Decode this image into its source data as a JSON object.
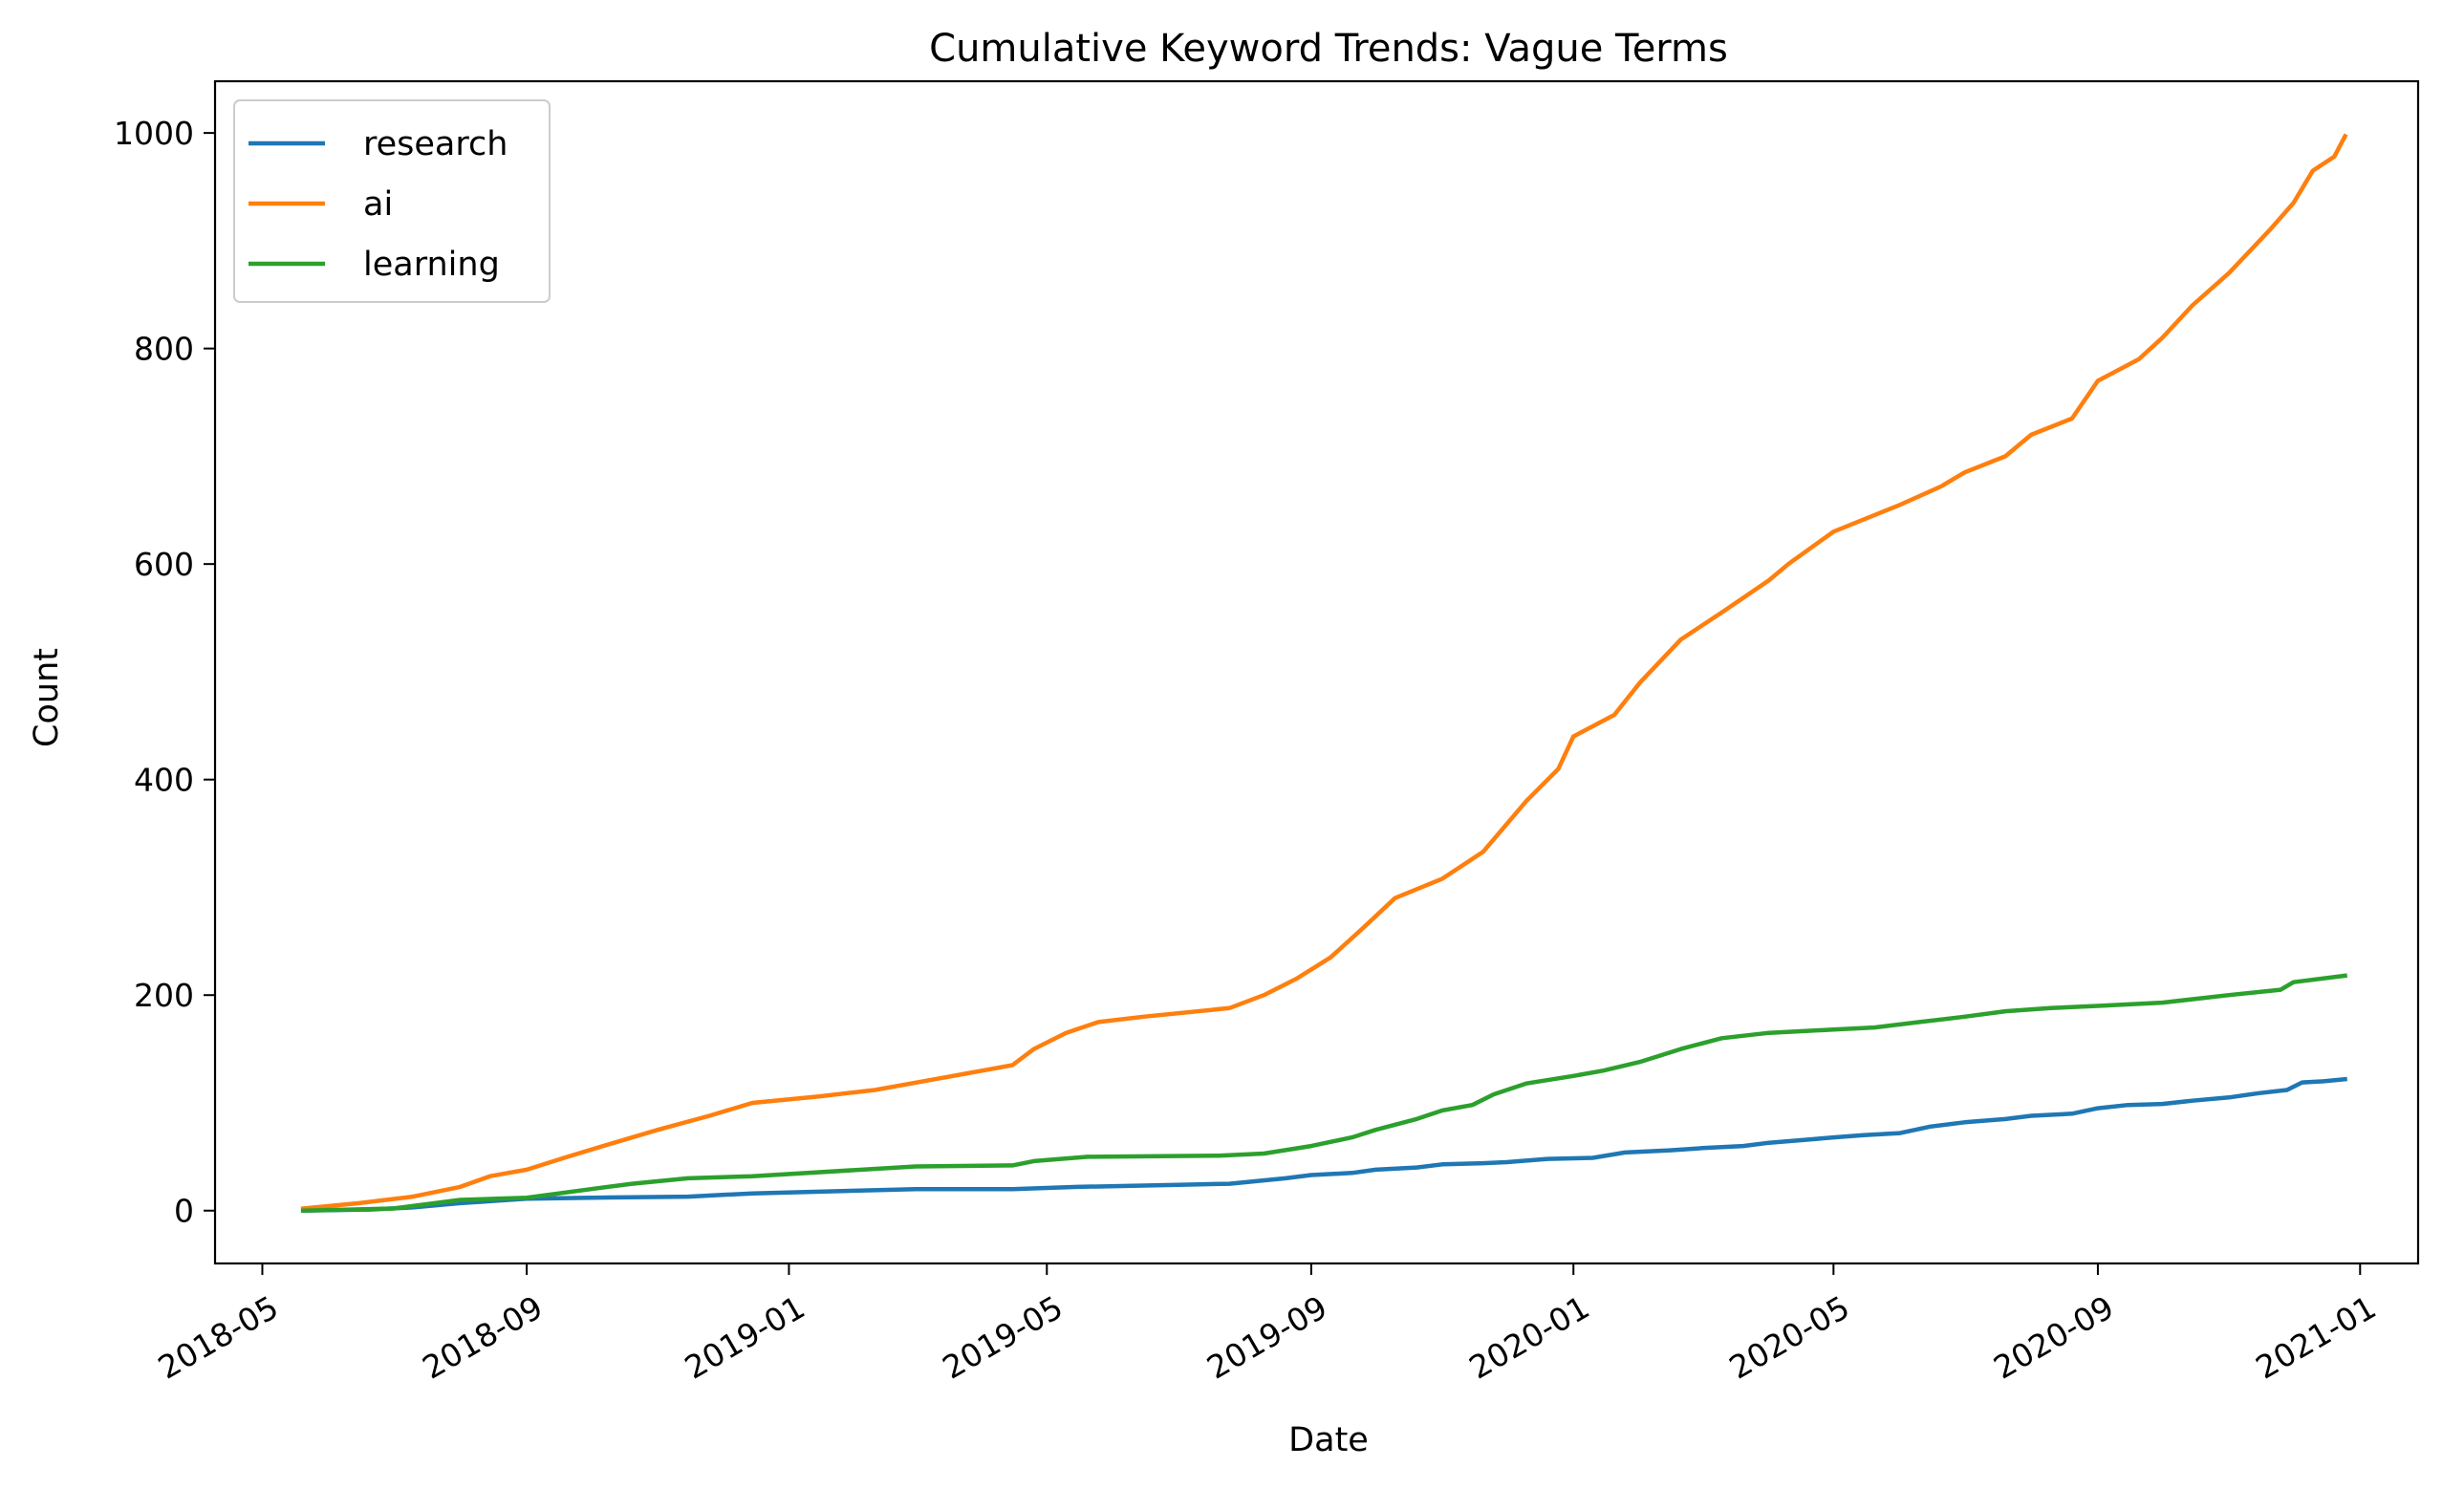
{
  "chart_data": {
    "type": "line",
    "title": "Cumulative Keyword Trends: Vague Terms",
    "xlabel": "Date",
    "ylabel": "Count",
    "x_tick_labels": [
      "2018-05",
      "2018-09",
      "2019-01",
      "2019-05",
      "2019-09",
      "2020-01",
      "2020-05",
      "2020-09",
      "2021-01"
    ],
    "y_ticks": [
      0,
      200,
      400,
      600,
      800,
      1000
    ],
    "xlim": [
      "2018-04-09",
      "2021-01-28"
    ],
    "ylim": [
      -49,
      1048
    ],
    "grid": false,
    "legend_position": "top-left",
    "series": [
      {
        "name": "research",
        "color": "#1f77b4",
        "points": [
          [
            "2018-05-20",
            0
          ],
          [
            "2018-06-20",
            1
          ],
          [
            "2018-07-10",
            3
          ],
          [
            "2018-08-01",
            7
          ],
          [
            "2018-09-01",
            11
          ],
          [
            "2018-10-01",
            12
          ],
          [
            "2018-11-15",
            13
          ],
          [
            "2018-12-15",
            16
          ],
          [
            "2019-03-01",
            20
          ],
          [
            "2019-04-15",
            20
          ],
          [
            "2019-05-15",
            22
          ],
          [
            "2019-07-01",
            24
          ],
          [
            "2019-07-25",
            25
          ],
          [
            "2019-08-20",
            30
          ],
          [
            "2019-09-01",
            33
          ],
          [
            "2019-09-20",
            35
          ],
          [
            "2019-10-01",
            38
          ],
          [
            "2019-10-20",
            40
          ],
          [
            "2019-11-01",
            43
          ],
          [
            "2019-11-20",
            44
          ],
          [
            "2019-12-01",
            45
          ],
          [
            "2019-12-20",
            48
          ],
          [
            "2020-01-10",
            49
          ],
          [
            "2020-01-25",
            54
          ],
          [
            "2020-02-15",
            56
          ],
          [
            "2020-03-01",
            58
          ],
          [
            "2020-03-20",
            60
          ],
          [
            "2020-04-01",
            63
          ],
          [
            "2020-04-20",
            66
          ],
          [
            "2020-05-01",
            68
          ],
          [
            "2020-05-15",
            70
          ],
          [
            "2020-06-01",
            72
          ],
          [
            "2020-06-15",
            78
          ],
          [
            "2020-07-01",
            82
          ],
          [
            "2020-07-20",
            85
          ],
          [
            "2020-08-01",
            88
          ],
          [
            "2020-08-20",
            90
          ],
          [
            "2020-09-01",
            95
          ],
          [
            "2020-09-15",
            98
          ],
          [
            "2020-10-01",
            99
          ],
          [
            "2020-10-15",
            102
          ],
          [
            "2020-11-01",
            105
          ],
          [
            "2020-11-15",
            109
          ],
          [
            "2020-11-28",
            112
          ],
          [
            "2020-12-05",
            119
          ],
          [
            "2020-12-15",
            120
          ],
          [
            "2020-12-25",
            122
          ]
        ]
      },
      {
        "name": "ai",
        "color": "#ff7f0e",
        "points": [
          [
            "2018-05-20",
            2
          ],
          [
            "2018-06-15",
            7
          ],
          [
            "2018-07-10",
            13
          ],
          [
            "2018-08-01",
            22
          ],
          [
            "2018-08-15",
            32
          ],
          [
            "2018-09-01",
            38
          ],
          [
            "2018-09-20",
            50
          ],
          [
            "2018-10-10",
            62
          ],
          [
            "2018-11-01",
            75
          ],
          [
            "2018-11-25",
            88
          ],
          [
            "2018-12-15",
            100
          ],
          [
            "2019-01-15",
            106
          ],
          [
            "2019-02-10",
            112
          ],
          [
            "2019-03-10",
            122
          ],
          [
            "2019-04-15",
            135
          ],
          [
            "2019-04-25",
            150
          ],
          [
            "2019-05-10",
            165
          ],
          [
            "2019-05-25",
            175
          ],
          [
            "2019-06-15",
            180
          ],
          [
            "2019-07-25",
            188
          ],
          [
            "2019-08-10",
            200
          ],
          [
            "2019-08-25",
            215
          ],
          [
            "2019-09-10",
            235
          ],
          [
            "2019-09-25",
            262
          ],
          [
            "2019-10-10",
            290
          ],
          [
            "2019-11-01",
            308
          ],
          [
            "2019-11-20",
            333
          ],
          [
            "2019-12-10",
            380
          ],
          [
            "2019-12-25",
            410
          ],
          [
            "2020-01-01",
            440
          ],
          [
            "2020-01-20",
            460
          ],
          [
            "2020-02-01",
            490
          ],
          [
            "2020-02-20",
            530
          ],
          [
            "2020-03-10",
            555
          ],
          [
            "2020-04-01",
            585
          ],
          [
            "2020-04-10",
            600
          ],
          [
            "2020-05-01",
            630
          ],
          [
            "2020-06-01",
            655
          ],
          [
            "2020-06-20",
            672
          ],
          [
            "2020-07-01",
            685
          ],
          [
            "2020-07-20",
            700
          ],
          [
            "2020-08-01",
            720
          ],
          [
            "2020-08-20",
            735
          ],
          [
            "2020-09-01",
            770
          ],
          [
            "2020-09-20",
            790
          ],
          [
            "2020-10-01",
            810
          ],
          [
            "2020-10-15",
            840
          ],
          [
            "2020-11-01",
            870
          ],
          [
            "2020-11-20",
            910
          ],
          [
            "2020-12-01",
            935
          ],
          [
            "2020-12-10",
            965
          ],
          [
            "2020-12-20",
            978
          ],
          [
            "2020-12-25",
            997
          ]
        ]
      },
      {
        "name": "learning",
        "color": "#2ca02c",
        "points": [
          [
            "2018-05-20",
            0
          ],
          [
            "2018-07-01",
            2
          ],
          [
            "2018-08-01",
            10
          ],
          [
            "2018-09-01",
            12
          ],
          [
            "2018-10-01",
            20
          ],
          [
            "2018-10-20",
            25
          ],
          [
            "2018-11-15",
            30
          ],
          [
            "2018-12-15",
            32
          ],
          [
            "2019-03-01",
            41
          ],
          [
            "2019-04-15",
            42
          ],
          [
            "2019-04-25",
            46
          ],
          [
            "2019-05-20",
            50
          ],
          [
            "2019-07-20",
            51
          ],
          [
            "2019-08-10",
            53
          ],
          [
            "2019-09-01",
            60
          ],
          [
            "2019-09-20",
            68
          ],
          [
            "2019-10-01",
            75
          ],
          [
            "2019-10-20",
            85
          ],
          [
            "2019-11-01",
            93
          ],
          [
            "2019-11-15",
            98
          ],
          [
            "2019-11-25",
            108
          ],
          [
            "2019-12-10",
            118
          ],
          [
            "2020-01-01",
            125
          ],
          [
            "2020-01-15",
            130
          ],
          [
            "2020-02-01",
            138
          ],
          [
            "2020-02-20",
            150
          ],
          [
            "2020-03-10",
            160
          ],
          [
            "2020-04-01",
            165
          ],
          [
            "2020-05-01",
            168
          ],
          [
            "2020-05-20",
            170
          ],
          [
            "2020-06-10",
            175
          ],
          [
            "2020-07-01",
            180
          ],
          [
            "2020-07-20",
            185
          ],
          [
            "2020-08-10",
            188
          ],
          [
            "2020-09-01",
            190
          ],
          [
            "2020-10-01",
            193
          ],
          [
            "2020-11-01",
            200
          ],
          [
            "2020-11-25",
            205
          ],
          [
            "2020-12-01",
            212
          ],
          [
            "2020-12-25",
            218
          ]
        ]
      }
    ]
  }
}
